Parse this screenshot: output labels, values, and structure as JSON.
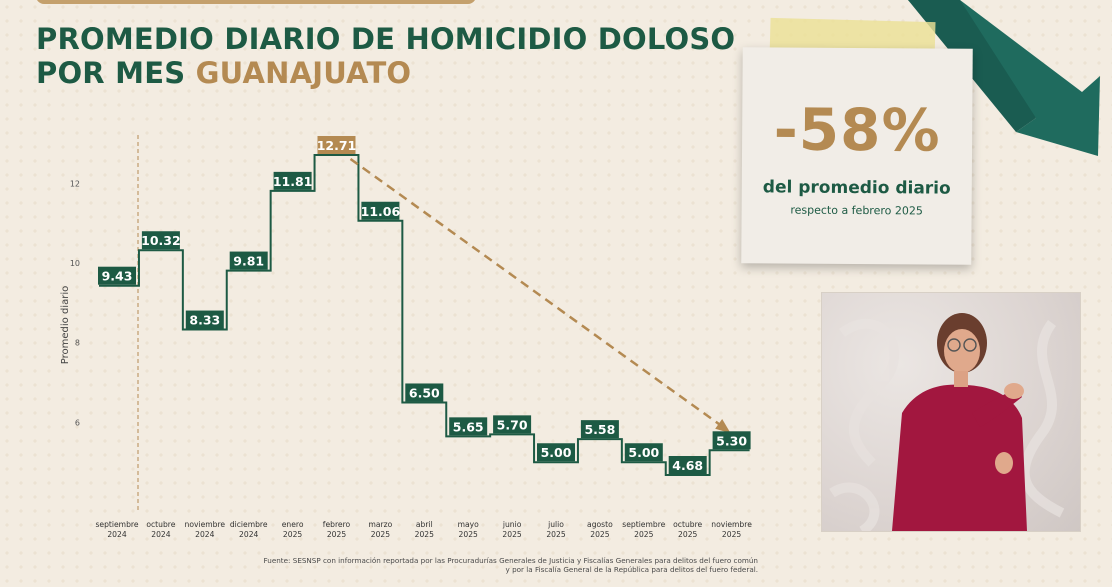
{
  "header": {
    "title_line1": "PROMEDIO DIARIO DE HOMICIDIO DOLOSO",
    "title_line2_prefix": "POR MES ",
    "title_line2_highlight": "GUANAJUATO"
  },
  "chart_data": {
    "type": "line",
    "step": true,
    "ylabel": "Promedio diario",
    "yticks": [
      6,
      8,
      10,
      12
    ],
    "ylim": [
      4.0,
      13.6
    ],
    "categories": [
      [
        "septiembre",
        "2024"
      ],
      [
        "octubre",
        "2024"
      ],
      [
        "noviembre",
        "2024"
      ],
      [
        "diciembre",
        "2024"
      ],
      [
        "enero",
        "2025"
      ],
      [
        "febrero",
        "2025"
      ],
      [
        "marzo",
        "2025"
      ],
      [
        "abril",
        "2025"
      ],
      [
        "mayo",
        "2025"
      ],
      [
        "junio",
        "2025"
      ],
      [
        "julio",
        "2025"
      ],
      [
        "agosto",
        "2025"
      ],
      [
        "septiembre",
        "2025"
      ],
      [
        "octubre",
        "2025"
      ],
      [
        "noviembre",
        "2025"
      ]
    ],
    "values": [
      9.43,
      10.32,
      8.33,
      9.81,
      11.81,
      12.71,
      11.06,
      6.5,
      5.65,
      5.7,
      5.0,
      5.58,
      5.0,
      4.68,
      5.3
    ],
    "value_labels": [
      "9.43",
      "10.32",
      "8.33",
      "9.81",
      "11.81",
      "12.71",
      "11.06",
      "6.50",
      "5.65",
      "5.70",
      "5.00",
      "5.58",
      "5.00",
      "4.68",
      "5.30"
    ],
    "highlight_index": 5,
    "trend": {
      "from_index": 5,
      "to_index": 14
    },
    "vertical_marker_after_index": 0,
    "grid": false,
    "colors": {
      "line": "#1d5a44",
      "label_bg": "#1d5a44",
      "highlight_bg": "#b48a52",
      "trend": "#b48a52",
      "tick": "#555555"
    }
  },
  "source": {
    "line1": "Fuente: SESNSP con información reportada por las Procuradurías Generales de Justicia y Fiscalías Generales para delitos del fuero común",
    "line2": "y por la Fiscalía General de la República para delitos del fuero federal."
  },
  "card": {
    "percent": "-58%",
    "line1": "del promedio diario",
    "line2": "respecto a febrero 2025"
  },
  "colors": {
    "green": "#1d5a44",
    "gold": "#b48a52",
    "bg": "#f3ece1",
    "teal_arrow": "#1f6b5e"
  }
}
